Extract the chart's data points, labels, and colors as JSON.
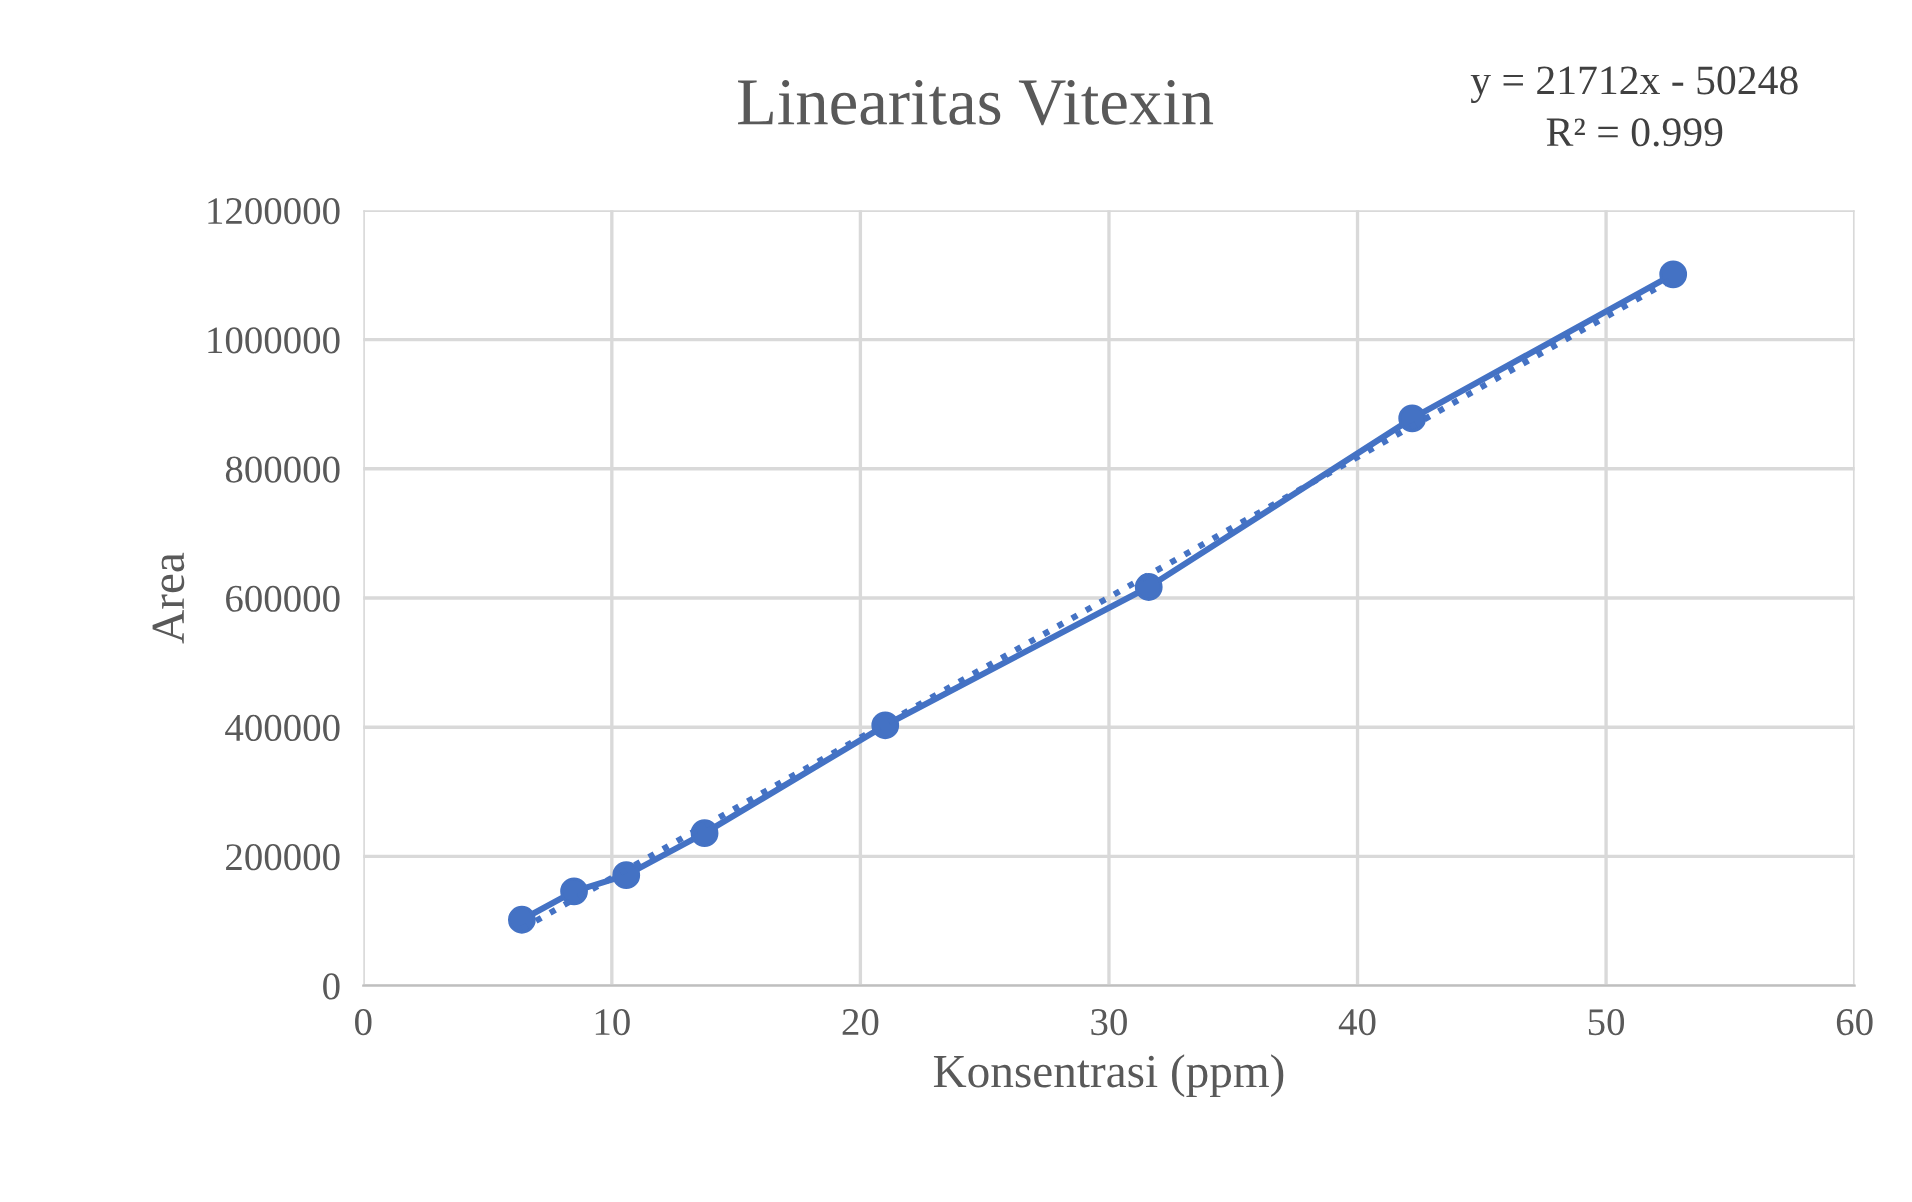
{
  "chart_data": {
    "type": "line",
    "title": "Linearitas Vitexin",
    "xlabel": "Konsentrasi (ppm)",
    "ylabel": "Area",
    "annotations": [
      "y = 21712x - 50248",
      "R² = 0.999"
    ],
    "series": [
      {
        "color": "#4472c4",
        "x": [
          6.38,
          8.48,
          10.58,
          13.73,
          21.0,
          31.6,
          42.2,
          52.7
        ],
        "values": [
          102000,
          146000,
          171000,
          236000,
          403000,
          617000,
          878000,
          1101000
        ],
        "marker": "circle",
        "line_style": "solid"
      },
      {
        "color": "#4472c4",
        "x": [
          6.38,
          52.7
        ],
        "values": [
          88000,
          1094000
        ],
        "marker": "none",
        "line_style": "dotted"
      }
    ],
    "xlim": [
      0,
      60
    ],
    "xticks": [
      0,
      10,
      20,
      30,
      40,
      50,
      60
    ],
    "ylim": [
      0,
      1200000
    ],
    "yticks": [
      0,
      200000,
      400000,
      600000,
      800000,
      1000000,
      1200000
    ],
    "grid": true,
    "legend": false
  }
}
